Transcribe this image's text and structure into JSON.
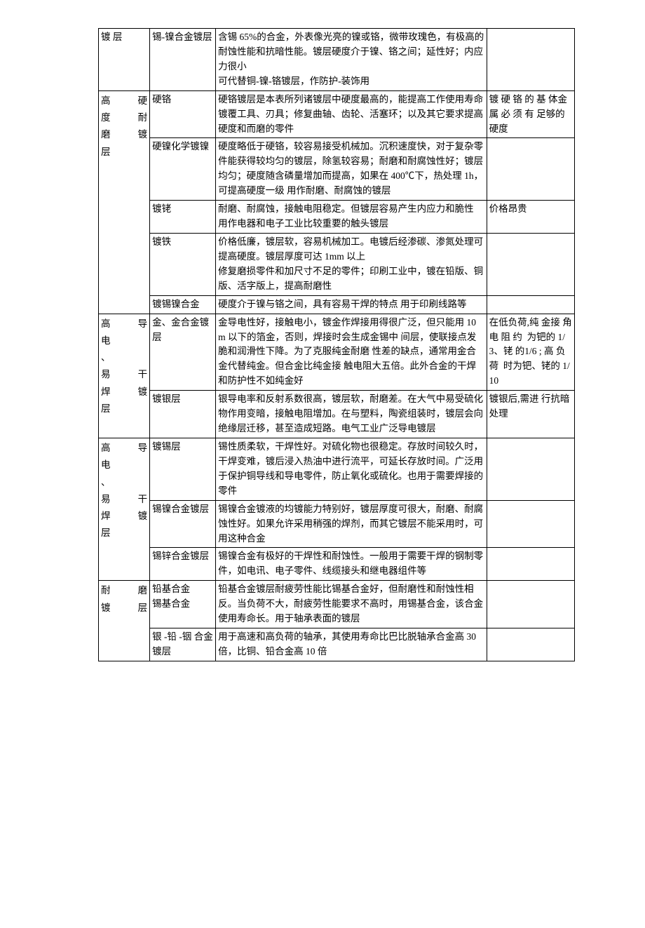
{
  "rows": [
    {
      "col1": "镀 层",
      "col2": "锡-镍合金镀层",
      "col3": "含锡 65%的合金，外表像光亮的镍或铬，微带玫瑰色，有极高的耐蚀性能和抗暗性能。镀层硬度介于镍、铬之间；延性好；内应力很小\n可代替铜-镍-铬镀层，作防护-装饰用",
      "col4": ""
    },
    {
      "col1_group": [
        [
          "高",
          "硬"
        ],
        [
          "度",
          "耐"
        ],
        [
          "磨",
          "镀"
        ],
        [
          "层",
          ""
        ]
      ],
      "col1_rowspan": 5,
      "col2": "硬铬",
      "col3": "硬铬镀层是本表所列诸镀层中硬度最高的，能提高工作使用寿命\n镀覆工具、刃具；修复曲轴、齿轮、活塞环；以及其它要求提高硬度和而磨的零件",
      "col4": "镀 硬 铬 的 基 体金 属 必 须 有 足够的硬度"
    },
    {
      "col2": "硬镍化学镀镍",
      "col3": "硬度略低于硬铬，较容易接受机械加。沉积速度快，对于复杂零件能获得较均匀的镀层，除氢较容易；耐磨和耐腐蚀性好；镀层均匀；硬度随含磷量增加而提高，如果在 400℃下，热处理 1h，可提高硬度一级 用作耐磨、耐腐蚀的镀层",
      "col4": ""
    },
    {
      "col2": "镀铑",
      "col3": "耐磨、耐腐蚀，接触电阻稳定。但镀层容易产生内应力和脆性\n用作电器和电子工业比较重要的触头镀层",
      "col4": "价格昂贵"
    },
    {
      "col2": "镀铁",
      "col3": "价格低廉，镀层软，容易机械加工。电镀后经渗碳、渗氮处理可提高硬度。镀层厚度可达 1mm 以上\n修复磨损零件和加尺寸不足的零件；印刷工业中，镀在铅版、铜版、活字版上，提高耐磨性",
      "col4": ""
    },
    {
      "col2": "镀锡镍合金",
      "col3": "硬度介于镍与铬之间，具有容易干焊的特点 用于印刷线路等",
      "col4": ""
    },
    {
      "col1_group": [
        [
          "高",
          "导"
        ],
        [
          "电",
          ""
        ],
        [
          "、",
          ""
        ],
        [
          "易",
          "干"
        ],
        [
          "焊",
          "镀"
        ],
        [
          "层",
          ""
        ]
      ],
      "col1_rowspan": 2,
      "col2": "金、金合金镀层",
      "col3": "金导电性好，接触电小，镀金作焊接用得很广泛，但只能用 10  m 以下的箔金，否则，焊接时会生成金锡中 间层，使联接点发脆和润滑性下降。为了克服纯金耐磨 性差的缺点，通常用金合金代替纯金。但合金比纯金接 触电阻大五倍。此外合金的干焊和防护性不如纯金好",
      "col4": "在低负荷,纯 金接 角 电 阻 约  为钯的 1/3、铑 的1/6 ; 高 负 荷  时为钯、铑的 1/10"
    },
    {
      "col2": "镀银层",
      "col3": "银导电率和反射系数很高，镀层软，耐磨差。在大气中易受硫化物作用变暗，接触电阻增加。在与塑料，陶瓷组装时，镀层会向绝缘层迁移，甚至造成短路。电气工业广泛导电镀层",
      "col4": "镀银后,需进 行抗暗处理"
    },
    {
      "col1_group": [
        [
          "",
          ""
        ],
        [
          "",
          ""
        ],
        [
          "高",
          "导"
        ],
        [
          "电",
          ""
        ],
        [
          "、",
          ""
        ],
        [
          "易",
          "干"
        ],
        [
          "焊",
          "镀"
        ],
        [
          "层",
          ""
        ]
      ],
      "col1_rowspan": 3,
      "col2": "镀锡层",
      "col3": "锡性质柔软，干焊性好。对硫化物也很稳定。存放时间较久时，干焊变难，镀后浸入热油中进行流平，可延长存放时间。广泛用于保护铜导线和导电零件，防止氧化或硫化。也用于需要焊接的零件",
      "col4": ""
    },
    {
      "col2": "锡镍合金镀层",
      "col3": "锡镍合金镀液的均镀能力特别好，镀层厚度可很大，耐磨、耐腐蚀性好。如果允许采用稍强的焊剂，而其它镀层不能采用时，可用这种合金",
      "col4": ""
    },
    {
      "col2": "锡锌合金镀层",
      "col3": "锡镍合金有极好的干焊性和耐蚀性。一般用于需要干焊的钢制零件，如电讯、电子零件、线缆接头和继电器组件等",
      "col4": ""
    },
    {
      "col1_group": [
        [
          "耐",
          "磨"
        ],
        [
          "镀",
          "层"
        ]
      ],
      "col1_rowspan": 2,
      "col2": "铅基合金\n锡基合金",
      "col3": "铅基合金镀层耐疲劳性能比锡基合金好，但耐磨性和耐蚀性相反。当负荷不大，耐疲劳性能要求不高时，用锡基合金，该合金使用寿命长。用于轴承表面的镀层",
      "col4": ""
    },
    {
      "col2": "银 -铅 -铟 合金镀层",
      "col3": "用于高速和高负荷的轴承，其使用寿命比巴比脱轴承合金高 30 倍，比铜、铅合金高 10 倍",
      "col4": ""
    }
  ]
}
